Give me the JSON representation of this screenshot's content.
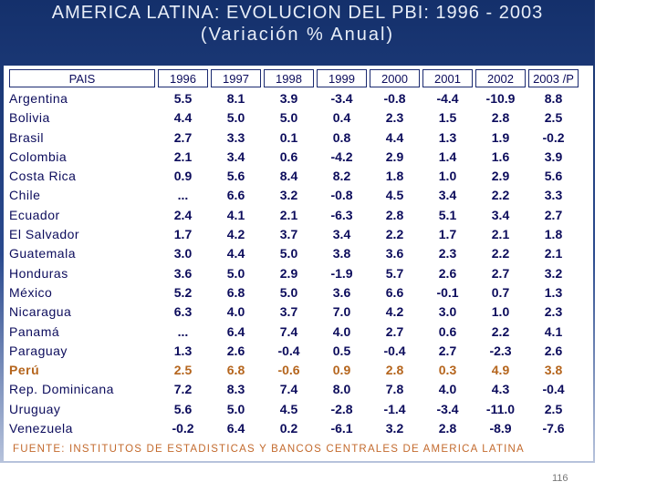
{
  "title": {
    "line1": "AMERICA LATINA: EVOLUCION DEL PBI: 1996 - 2003",
    "line2": "(Variación % Anual)"
  },
  "table": {
    "headers": [
      "PAIS",
      "1996",
      "1997",
      "1998",
      "1999",
      "2000",
      "2001",
      "2002",
      "2003 /P"
    ],
    "rows": [
      {
        "country": "Argentina",
        "values": [
          "5.5",
          "8.1",
          "3.9",
          "-3.4",
          "-0.8",
          "-4.4",
          "-10.9",
          "8.8"
        ]
      },
      {
        "country": "Bolivia",
        "values": [
          "4.4",
          "5.0",
          "5.0",
          "0.4",
          "2.3",
          "1.5",
          "2.8",
          "2.5"
        ]
      },
      {
        "country": "Brasil",
        "values": [
          "2.7",
          "3.3",
          "0.1",
          "0.8",
          "4.4",
          "1.3",
          "1.9",
          "-0.2"
        ]
      },
      {
        "country": "Colombia",
        "values": [
          "2.1",
          "3.4",
          "0.6",
          "-4.2",
          "2.9",
          "1.4",
          "1.6",
          "3.9"
        ]
      },
      {
        "country": "Costa Rica",
        "values": [
          "0.9",
          "5.6",
          "8.4",
          "8.2",
          "1.8",
          "1.0",
          "2.9",
          "5.6"
        ]
      },
      {
        "country": "Chile",
        "values": [
          "...",
          "6.6",
          "3.2",
          "-0.8",
          "4.5",
          "3.4",
          "2.2",
          "3.3"
        ]
      },
      {
        "country": "Ecuador",
        "values": [
          "2.4",
          "4.1",
          "2.1",
          "-6.3",
          "2.8",
          "5.1",
          "3.4",
          "2.7"
        ]
      },
      {
        "country": "El Salvador",
        "values": [
          "1.7",
          "4.2",
          "3.7",
          "3.4",
          "2.2",
          "1.7",
          "2.1",
          "1.8"
        ]
      },
      {
        "country": "Guatemala",
        "values": [
          "3.0",
          "4.4",
          "5.0",
          "3.8",
          "3.6",
          "2.3",
          "2.2",
          "2.1"
        ]
      },
      {
        "country": "Honduras",
        "values": [
          "3.6",
          "5.0",
          "2.9",
          "-1.9",
          "5.7",
          "2.6",
          "2.7",
          "3.2"
        ]
      },
      {
        "country": "México",
        "values": [
          "5.2",
          "6.8",
          "5.0",
          "3.6",
          "6.6",
          "-0.1",
          "0.7",
          "1.3"
        ]
      },
      {
        "country": "Nicaragua",
        "values": [
          "6.3",
          "4.0",
          "3.7",
          "7.0",
          "4.2",
          "3.0",
          "1.0",
          "2.3"
        ]
      },
      {
        "country": "Panamá",
        "values": [
          "...",
          "6.4",
          "7.4",
          "4.0",
          "2.7",
          "0.6",
          "2.2",
          "4.1"
        ]
      },
      {
        "country": "Paraguay",
        "values": [
          "1.3",
          "2.6",
          "-0.4",
          "0.5",
          "-0.4",
          "2.7",
          "-2.3",
          "2.6"
        ]
      },
      {
        "country": "Perú",
        "values": [
          "2.5",
          "6.8",
          "-0.6",
          "0.9",
          "2.8",
          "0.3",
          "4.9",
          "3.8"
        ]
      },
      {
        "country": "Rep. Dominicana",
        "values": [
          "7.2",
          "8.3",
          "7.4",
          "8.0",
          "7.8",
          "4.0",
          "4.3",
          "-0.4"
        ]
      },
      {
        "country": "Uruguay",
        "values": [
          "5.6",
          "5.0",
          "4.5",
          "-2.8",
          "-1.4",
          "-3.4",
          "-11.0",
          "2.5"
        ]
      },
      {
        "country": "Venezuela",
        "values": [
          "-0.2",
          "6.4",
          "0.2",
          "-6.1",
          "3.2",
          "2.8",
          "-8.9",
          "-7.6"
        ]
      }
    ],
    "highlight_row": "Perú",
    "highlight_color": "#b5651d"
  },
  "source": "FUENTE: INSTITUTOS DE ESTADISTICAS Y BANCOS CENTRALES DE AMERICA LATINA",
  "page_number": "116"
}
